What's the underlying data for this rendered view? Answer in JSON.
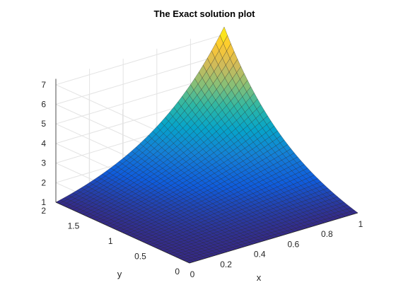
{
  "chart_data": {
    "type": "surface",
    "title": "The Exact solution plot",
    "xlabel": "x",
    "ylabel": "y",
    "zlabel": "",
    "xlim": [
      0,
      1
    ],
    "ylim": [
      0,
      2
    ],
    "zlim": [
      1,
      7
    ],
    "x_ticks": [
      0,
      0.2,
      0.4,
      0.6,
      0.8,
      1
    ],
    "x_tick_labels": [
      "0",
      "0.2",
      "0.4",
      "0.6",
      "0.8",
      "1"
    ],
    "y_ticks": [
      0,
      0.5,
      1,
      1.5,
      2
    ],
    "y_tick_labels": [
      "0",
      "0.5",
      "1",
      "1.5",
      "2"
    ],
    "z_ticks": [
      1,
      2,
      3,
      4,
      5,
      6,
      7
    ],
    "z_tick_labels": [
      "1",
      "2",
      "3",
      "4",
      "5",
      "6",
      "7"
    ],
    "surface": {
      "x_range": [
        0,
        1
      ],
      "y_range": [
        0,
        2
      ],
      "z_min": 1,
      "z_max": 7.39,
      "corner_values": {
        "x0_y0": 1,
        "x1_y0": 1,
        "x0_y2": 1,
        "x1_y2": 7.39
      }
    },
    "grid": true,
    "colormap": "parula",
    "colormap_colors": [
      "#352a87",
      "#0f5cdd",
      "#1481d6",
      "#06a4ca",
      "#2eb7a4",
      "#87bf77",
      "#d1bb59",
      "#fec832",
      "#f9fb0e"
    ]
  }
}
